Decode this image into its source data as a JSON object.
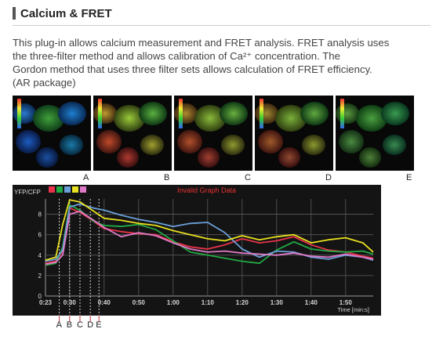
{
  "header": {
    "title": "Calcium & FRET"
  },
  "description": {
    "line1": "This plug-in allows calcium measurement and FRET analysis. FRET analysis uses",
    "line2": "the three-filter method and allows calibration of Ca²⁺ concentration. The",
    "line3": "Gordon method that uses three filter sets allows calculation of FRET efficiency.",
    "line4": "(AR package)"
  },
  "thumbnails": [
    {
      "label": "A"
    },
    {
      "label": "B"
    },
    {
      "label": "C"
    },
    {
      "label": "D"
    },
    {
      "label": "E"
    }
  ],
  "colors": {
    "series": [
      "#e8334a",
      "#22aa44",
      "#6aa0d8",
      "#e8e020",
      "#e07ac8"
    ],
    "chart_bg": "#141414",
    "warning": "#e83030"
  },
  "chart_data": {
    "type": "line",
    "ylabel": "YFP/CFP",
    "xlabel": "Time [min:s]",
    "warning": "Invalid Graph Data",
    "xlim": [
      23,
      118
    ],
    "ylim": [
      0,
      9.5
    ],
    "x_ticks": [
      "0:23",
      "0:30",
      "0:40",
      "0:50",
      "1:00",
      "1:10",
      "1:20",
      "1:30",
      "1:40",
      "1:50"
    ],
    "x_tick_values": [
      23,
      30,
      40,
      50,
      60,
      70,
      80,
      90,
      100,
      110
    ],
    "y_ticks": [
      "0",
      "2",
      "4",
      "6",
      "8"
    ],
    "y_tick_values": [
      0,
      2,
      4,
      6,
      8
    ],
    "grid": true,
    "markers": [
      {
        "label": "A",
        "x": 27
      },
      {
        "label": "B",
        "x": 30
      },
      {
        "label": "C",
        "x": 33
      },
      {
        "label": "D",
        "x": 36
      },
      {
        "label": "E",
        "x": 38.5
      }
    ],
    "series": [
      {
        "color": "#e8334a",
        "x": [
          23,
          26,
          28,
          30,
          33,
          37,
          40,
          45,
          50,
          55,
          60,
          65,
          70,
          75,
          80,
          85,
          90,
          95,
          100,
          105,
          110,
          115,
          118
        ],
        "y": [
          3.2,
          3.4,
          4.4,
          8.6,
          8.2,
          7.3,
          6.6,
          6.3,
          6.1,
          6.0,
          5.3,
          4.8,
          4.6,
          5.0,
          5.6,
          5.2,
          5.4,
          5.8,
          5.0,
          4.5,
          4.3,
          3.9,
          3.7
        ]
      },
      {
        "color": "#22aa44",
        "x": [
          23,
          26,
          28,
          30,
          33,
          37,
          40,
          45,
          50,
          55,
          60,
          65,
          70,
          75,
          80,
          85,
          90,
          95,
          100,
          105,
          110,
          115,
          118
        ],
        "y": [
          3.0,
          3.2,
          4.8,
          8.9,
          8.4,
          7.3,
          6.9,
          6.8,
          7.0,
          6.5,
          5.4,
          4.3,
          4.0,
          3.7,
          3.4,
          3.2,
          4.5,
          5.3,
          4.6,
          4.4,
          4.3,
          4.4,
          4.1
        ]
      },
      {
        "color": "#6aa0d8",
        "x": [
          23,
          26,
          28,
          30,
          33,
          37,
          40,
          45,
          50,
          55,
          60,
          65,
          70,
          75,
          80,
          85,
          90,
          95,
          100,
          105,
          110,
          115,
          118
        ],
        "y": [
          3.4,
          3.6,
          4.5,
          8.7,
          9.0,
          8.6,
          8.4,
          7.9,
          7.5,
          7.2,
          6.8,
          7.1,
          7.2,
          6.2,
          4.6,
          3.8,
          4.4,
          4.3,
          3.8,
          3.6,
          4.0,
          3.8,
          3.5
        ]
      },
      {
        "color": "#e8e020",
        "x": [
          23,
          26,
          28,
          30,
          33,
          37,
          40,
          45,
          50,
          55,
          60,
          65,
          70,
          75,
          80,
          85,
          90,
          95,
          100,
          105,
          110,
          115,
          118
        ],
        "y": [
          3.5,
          3.8,
          7.0,
          9.4,
          9.2,
          8.3,
          7.6,
          7.4,
          7.1,
          6.9,
          6.4,
          6.0,
          5.6,
          5.4,
          5.9,
          5.5,
          5.8,
          6.0,
          5.2,
          5.5,
          5.7,
          5.2,
          4.3
        ]
      },
      {
        "color": "#e07ac8",
        "x": [
          23,
          26,
          28,
          30,
          33,
          37,
          40,
          45,
          50,
          55,
          60,
          65,
          70,
          75,
          80,
          85,
          90,
          95,
          100,
          105,
          110,
          115,
          118
        ],
        "y": [
          3.1,
          3.3,
          4.0,
          8.0,
          8.3,
          7.4,
          6.7,
          5.8,
          6.2,
          5.9,
          5.2,
          4.6,
          4.3,
          4.4,
          4.2,
          4.1,
          4.0,
          4.2,
          3.9,
          3.8,
          4.1,
          3.8,
          3.6
        ]
      }
    ]
  }
}
